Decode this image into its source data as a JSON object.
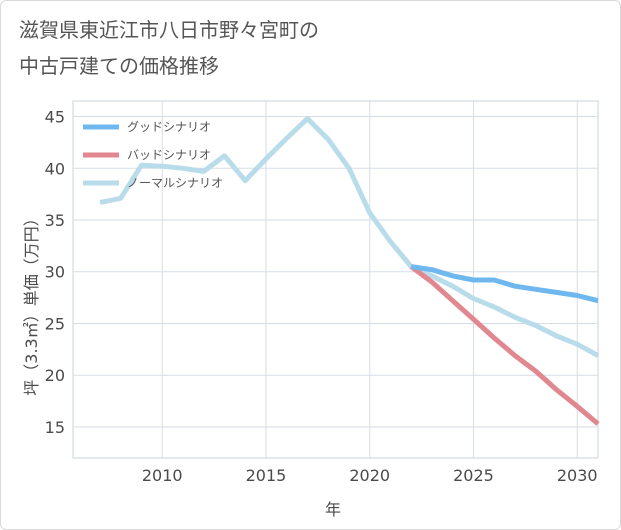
{
  "header": {
    "title_line1": "滋賀県東近江市八日市野々宮町の",
    "title_line2": "中古戸建ての価格推移"
  },
  "chart_data": {
    "type": "line",
    "xlabel": "年",
    "ylabel": "坪（3.3㎡）単価（万円）",
    "xlim": [
      2005.7,
      2031
    ],
    "ylim": [
      12,
      46.5
    ],
    "xticks": [
      2010,
      2015,
      2020,
      2025,
      2030
    ],
    "yticks": [
      15,
      20,
      25,
      30,
      35,
      40,
      45
    ],
    "grid": true,
    "legend_position": "top-left",
    "series": [
      {
        "name": "グッドシナリオ",
        "color": "#6fb8ef",
        "x": [
          2022,
          2023,
          2024,
          2025,
          2026,
          2027,
          2028,
          2029,
          2030,
          2031
        ],
        "y": [
          30.5,
          30.2,
          29.6,
          29.2,
          29.2,
          28.6,
          28.3,
          28.0,
          27.7,
          27.2
        ]
      },
      {
        "name": "バッドシナリオ",
        "color": "#e0878f",
        "x": [
          2022,
          2023,
          2024,
          2025,
          2026,
          2027,
          2028,
          2029,
          2030,
          2031
        ],
        "y": [
          30.5,
          29.0,
          27.2,
          25.4,
          23.6,
          21.9,
          20.4,
          18.6,
          17.0,
          15.3
        ]
      },
      {
        "name": "ノーマルシナリオ",
        "color": "#b9dcea",
        "x": [
          2007,
          2008,
          2009,
          2010,
          2011,
          2012,
          2013,
          2014,
          2015,
          2016,
          2017,
          2018,
          2019,
          2020,
          2021,
          2022,
          2023,
          2024,
          2025,
          2026,
          2027,
          2028,
          2029,
          2030,
          2031
        ],
        "y": [
          36.7,
          37.1,
          40.3,
          40.2,
          40.0,
          39.7,
          41.2,
          38.8,
          40.9,
          42.9,
          44.8,
          42.8,
          40.0,
          35.7,
          32.9,
          30.5,
          29.6,
          28.6,
          27.4,
          26.6,
          25.6,
          24.8,
          23.8,
          23.0,
          21.9
        ]
      }
    ]
  }
}
